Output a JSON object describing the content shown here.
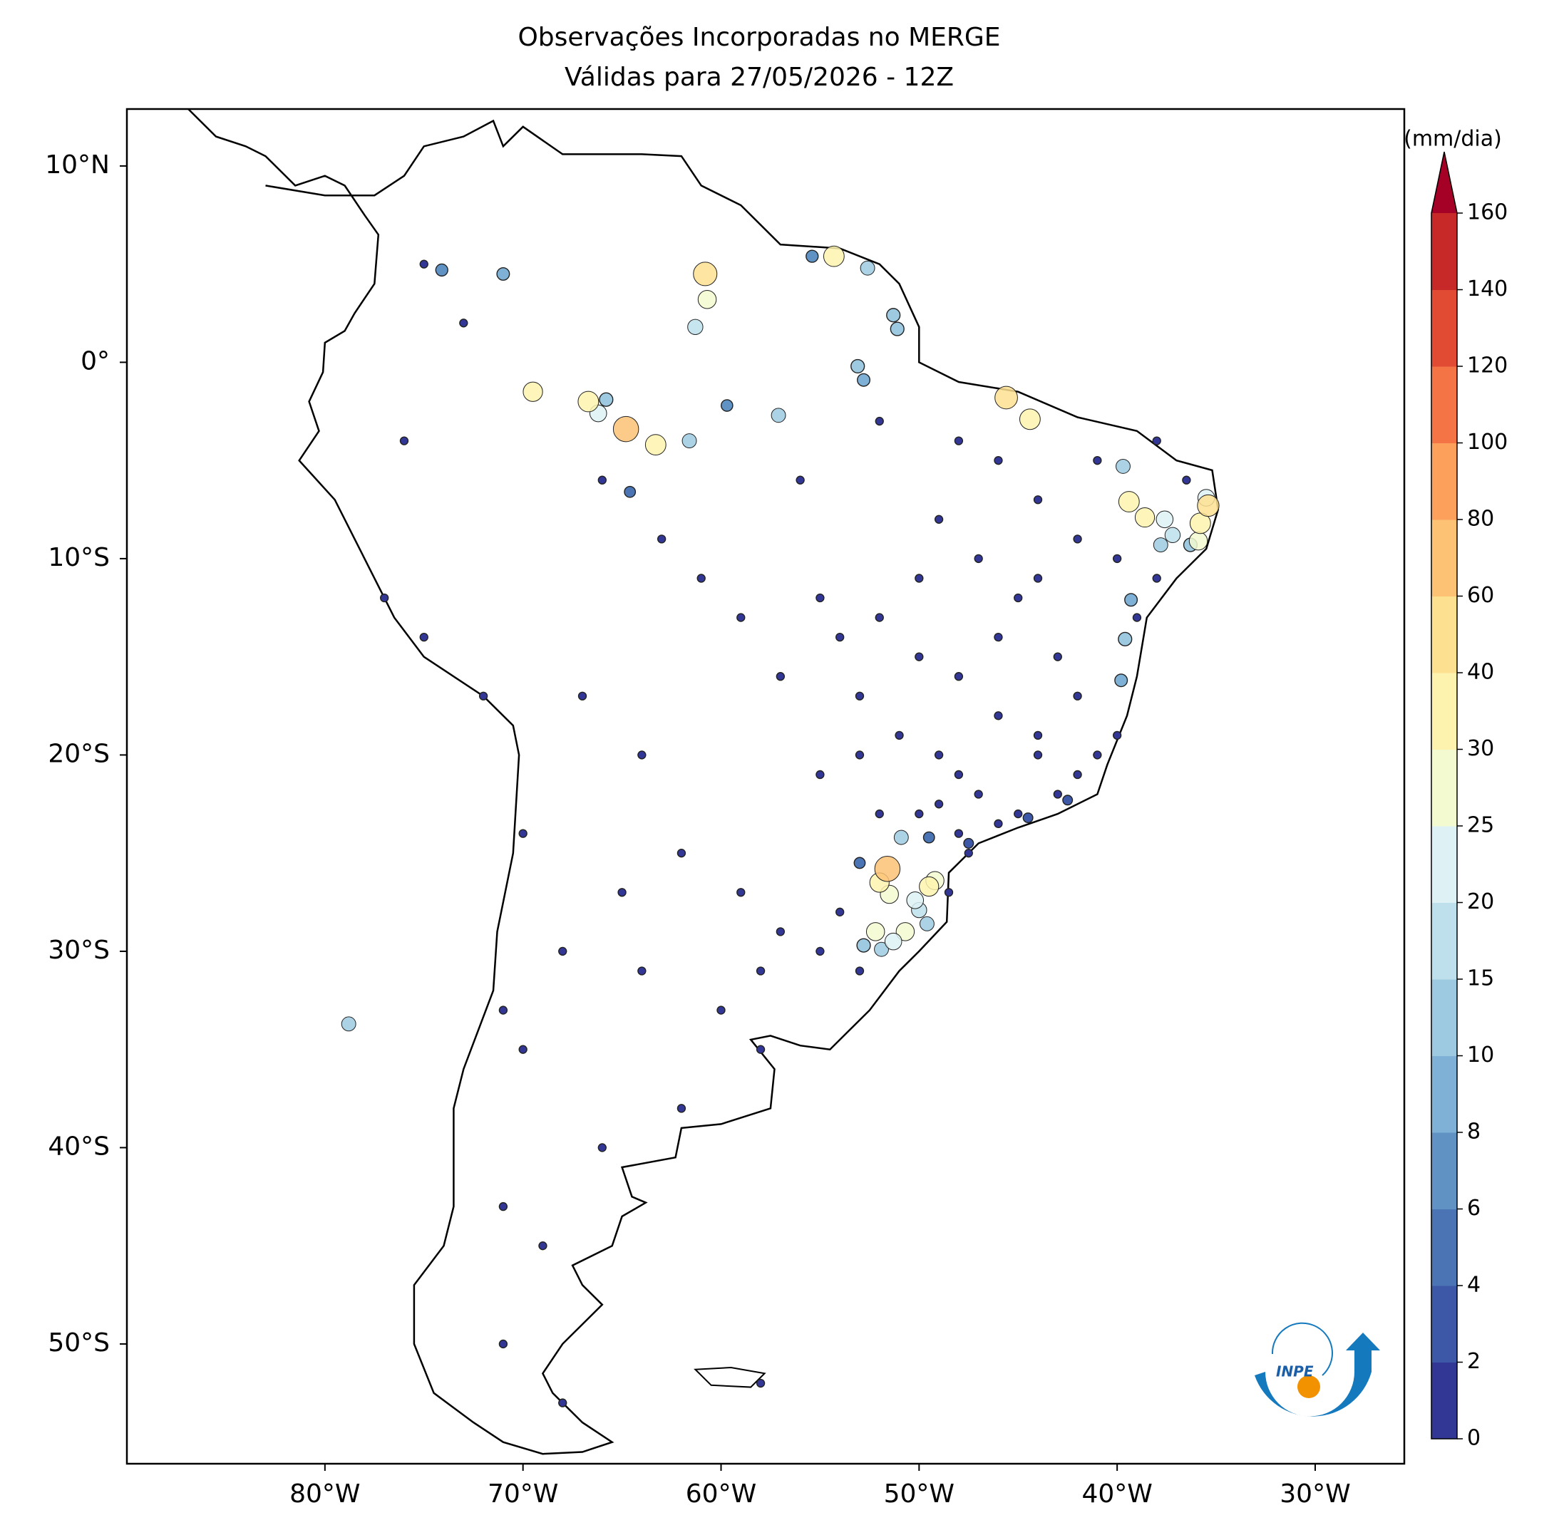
{
  "chart_data": {
    "type": "scatter-map",
    "title": "Observações Incorporadas no MERGE",
    "subtitle": "Válidas para 27/05/2026 - 12Z",
    "xlim": [
      -90,
      -25.5
    ],
    "ylim": [
      -56.1,
      12.9
    ],
    "xticks": [
      {
        "value": -80,
        "label": "80°W"
      },
      {
        "value": -70,
        "label": "70°W"
      },
      {
        "value": -60,
        "label": "60°W"
      },
      {
        "value": -50,
        "label": "50°W"
      },
      {
        "value": -40,
        "label": "40°W"
      },
      {
        "value": -30,
        "label": "30°W"
      }
    ],
    "yticks": [
      {
        "value": 10,
        "label": "10°N"
      },
      {
        "value": 0,
        "label": "0°"
      },
      {
        "value": -10,
        "label": "10°S"
      },
      {
        "value": -20,
        "label": "20°S"
      },
      {
        "value": -30,
        "label": "30°S"
      },
      {
        "value": -40,
        "label": "40°S"
      },
      {
        "value": -50,
        "label": "50°S"
      }
    ],
    "x": [
      -55,
      -54,
      -52,
      -50,
      -48,
      -46,
      -44,
      -42,
      -43,
      -45,
      -47,
      -48,
      -49,
      -51,
      -53,
      -55,
      -52,
      -50,
      -48,
      -46,
      -44,
      -42,
      -40,
      -41,
      -43,
      -45,
      -47,
      -49,
      -44,
      -42,
      -40,
      -38,
      -41,
      -38,
      -36.5,
      -39,
      -44,
      -46,
      -50,
      -53,
      -57,
      -59,
      -61,
      -63,
      -56,
      -52,
      -48,
      -46,
      -54,
      -53,
      -55,
      -57,
      -49,
      -47.5,
      -48.5,
      -65,
      -68,
      -64,
      -60,
      -58,
      -62,
      -66,
      -69,
      -71,
      -70,
      -71,
      -70,
      -75,
      -77,
      -72,
      -67,
      -64,
      -62,
      -59,
      -58,
      -71,
      -68,
      -58,
      -75,
      -76,
      -73,
      -66,
      -42.5,
      -44.5,
      -47.5,
      -49.5,
      -53,
      -57.1,
      -59.7,
      -64.6,
      -71,
      -74.1,
      -55.4,
      -52.6,
      -51.3,
      -51.1,
      -53.1,
      -52.8,
      -61.6,
      -65.8,
      -39.7,
      -36.3,
      -37.8,
      -39.3,
      -39.6,
      -39.8,
      -50.9,
      -50,
      -49.6,
      -52.8,
      -51.9,
      -78.8,
      -61.3,
      -66.2,
      -37.6,
      -35.5,
      -60.7,
      -69.5,
      -66.7,
      -63.3,
      -54.3,
      -44.4,
      -37.2,
      -35.9,
      -51.5,
      -50.2,
      -49.2,
      -52.2,
      -50.7,
      -51.3,
      -38.6,
      -52,
      -49.5,
      -35.8,
      -39.4,
      -35.4,
      -60.8,
      -45.6,
      -64.8,
      -51.6
    ],
    "y": [
      -12,
      -14,
      -13,
      -15,
      -16,
      -18,
      -20,
      -21,
      -22,
      -23,
      -22,
      -21,
      -20,
      -19,
      -20,
      -21,
      -23,
      -23,
      -24,
      -23.5,
      -19,
      -17,
      -19,
      -20,
      -15,
      -12,
      -10,
      -8,
      -7,
      -9,
      -10,
      -11,
      -5,
      -4,
      -6,
      -13,
      -11,
      -14,
      -11,
      -17,
      -16,
      -13,
      -11,
      -9,
      -6,
      -3,
      -4,
      -5,
      -28,
      -31,
      -30,
      -29,
      -22.5,
      -25,
      -27,
      -27,
      -30,
      -31,
      -33,
      -35,
      -38,
      -40,
      -45,
      -43,
      -35,
      -33,
      -24,
      -14,
      -12,
      -17,
      -17,
      -20,
      -25,
      -27,
      -31,
      -50,
      -53,
      -52,
      5,
      -4,
      2,
      -6,
      -22.3,
      -23.2,
      -24.5,
      -24.2,
      -25.5,
      -2.7,
      -2.2,
      -6.6,
      4.5,
      4.7,
      5.4,
      4.8,
      2.4,
      1.7,
      -0.2,
      -0.9,
      -4,
      -1.9,
      -5.3,
      -9.3,
      -9.3,
      -12.1,
      -14.1,
      -16.2,
      -24.2,
      -27.9,
      -28.6,
      -29.7,
      -29.9,
      -33.7,
      1.8,
      -2.6,
      -8,
      -6.9,
      3.2,
      -1.5,
      -2,
      -4.2,
      5.4,
      -2.9,
      -8.8,
      -9.1,
      -27.1,
      -27.4,
      -26.4,
      -29,
      -29,
      -29.5,
      -7.9,
      -26.5,
      -26.7,
      -8.2,
      -7.1,
      -7.3,
      4.5,
      -1.8,
      -3.4,
      -25.8
    ],
    "values": [
      1,
      1,
      1,
      1,
      1,
      1,
      1,
      1,
      1,
      1,
      1,
      1,
      1,
      1,
      1,
      1,
      1,
      1,
      1,
      1,
      1,
      1,
      1,
      1,
      1,
      1,
      1,
      1,
      1,
      1,
      1,
      1,
      1,
      1,
      1,
      1,
      1,
      1,
      1,
      1,
      1,
      1,
      1,
      1,
      1,
      1,
      1,
      1,
      1,
      1,
      1,
      1,
      1,
      1,
      1,
      1,
      1,
      1,
      1,
      1,
      1,
      1,
      1,
      1,
      1,
      1,
      1,
      1,
      1,
      1,
      1,
      1,
      1,
      1,
      1,
      1,
      1,
      1,
      1,
      1,
      1,
      1,
      3,
      3,
      3,
      5,
      5,
      12,
      6,
      5,
      8,
      7,
      7,
      12,
      10,
      10,
      10,
      8,
      12,
      10,
      12,
      10,
      12,
      8,
      10,
      8,
      12,
      15,
      12,
      10,
      12,
      12,
      15,
      20,
      20,
      20,
      25,
      30,
      35,
      35,
      35,
      35,
      15,
      25,
      25,
      20,
      25,
      25,
      25,
      20,
      30,
      30,
      30,
      35,
      35,
      40,
      50,
      45,
      60,
      60
    ],
    "colorbar": {
      "label": "(mm/dia)",
      "ticks": [
        0,
        2,
        4,
        6,
        8,
        10,
        15,
        20,
        25,
        30,
        40,
        60,
        80,
        100,
        120,
        140,
        160
      ],
      "colors": [
        "#323694",
        "#3d58a7",
        "#4a74b4",
        "#6092c4",
        "#7eb1d5",
        "#9dcae1",
        "#bde0ec",
        "#def2f6",
        "#f3fad0",
        "#fdf3ae",
        "#fee091",
        "#fdc274",
        "#fca05b",
        "#f47445",
        "#e24b33",
        "#c72828"
      ],
      "extend_color": "#a50026"
    },
    "logo": "INPE"
  }
}
